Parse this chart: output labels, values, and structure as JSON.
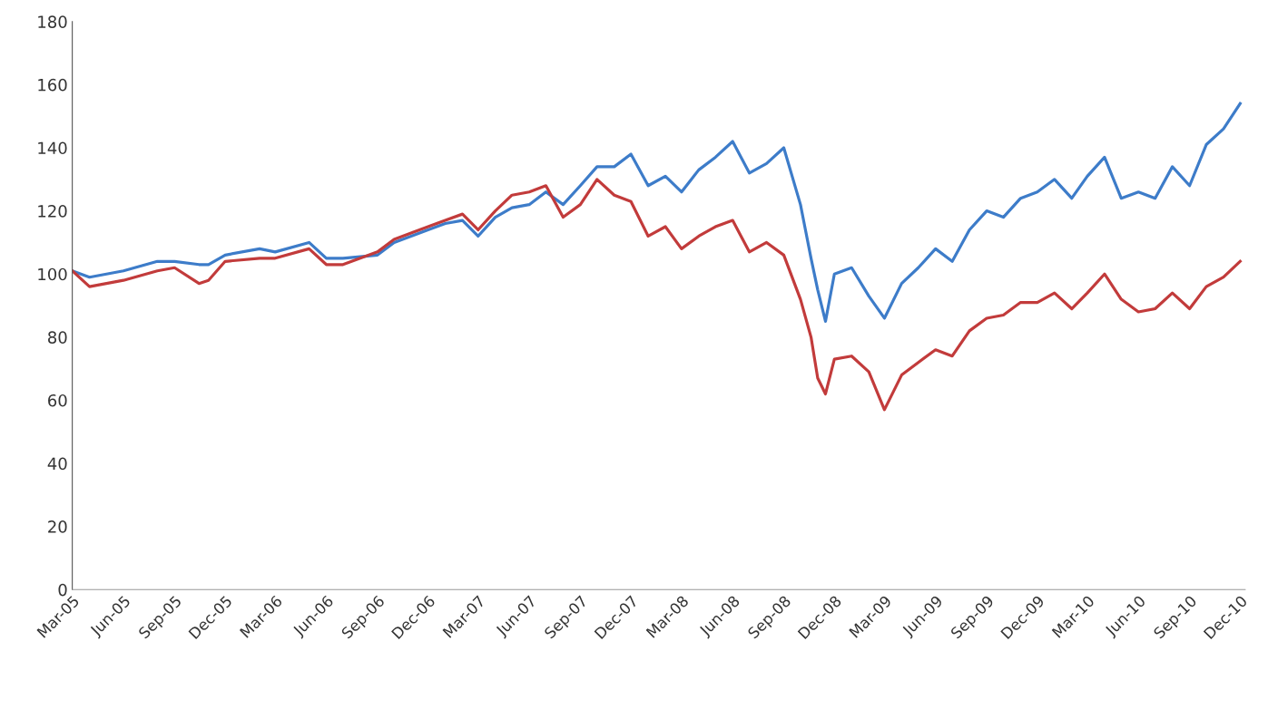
{
  "chart_data": {
    "type": "line",
    "x": [
      "2005-03-01",
      "2005-04-01",
      "2005-06-01",
      "2005-08-01",
      "2005-09-01",
      "2005-10-15",
      "2005-11-01",
      "2005-12-01",
      "2006-02-01",
      "2006-03-01",
      "2006-05-01",
      "2006-06-01",
      "2006-07-01",
      "2006-09-01",
      "2006-10-01",
      "2006-12-01",
      "2007-01-01",
      "2007-02-01",
      "2007-03-01",
      "2007-04-01",
      "2007-05-01",
      "2007-06-01",
      "2007-07-01",
      "2007-08-01",
      "2007-09-01",
      "2007-10-01",
      "2007-11-01",
      "2007-12-01",
      "2008-01-01",
      "2008-02-01",
      "2008-03-01",
      "2008-04-01",
      "2008-05-01",
      "2008-06-01",
      "2008-07-01",
      "2008-08-01",
      "2008-09-01",
      "2008-10-01",
      "2008-10-20",
      "2008-11-01",
      "2008-11-15",
      "2008-12-01",
      "2009-01-01",
      "2009-02-01",
      "2009-03-01",
      "2009-04-01",
      "2009-05-01",
      "2009-06-01",
      "2009-07-01",
      "2009-08-01",
      "2009-09-01",
      "2009-10-01",
      "2009-11-01",
      "2009-12-01",
      "2010-01-01",
      "2010-02-01",
      "2010-03-01",
      "2010-04-01",
      "2010-05-01",
      "2010-06-01",
      "2010-07-01",
      "2010-08-01",
      "2010-09-01",
      "2010-10-01",
      "2010-11-01",
      "2010-12-01"
    ],
    "series": [
      {
        "color": "#3d7cc9",
        "values": [
          101,
          99,
          101,
          104,
          104,
          103,
          103,
          106,
          108,
          107,
          110,
          105,
          105,
          106,
          110,
          114,
          116,
          117,
          112,
          118,
          121,
          122,
          126,
          122,
          128,
          134,
          134,
          138,
          128,
          131,
          126,
          133,
          137,
          142,
          132,
          135,
          140,
          122,
          105,
          95,
          85,
          100,
          102,
          93,
          86,
          97,
          102,
          108,
          104,
          114,
          120,
          118,
          124,
          126,
          130,
          124,
          131,
          137,
          124,
          126,
          124,
          134,
          128,
          141,
          146,
          154
        ]
      },
      {
        "color": "#c23b3b",
        "values": [
          101,
          96,
          98,
          101,
          102,
          97,
          98,
          104,
          105,
          105,
          108,
          103,
          103,
          107,
          111,
          115,
          117,
          119,
          114,
          120,
          125,
          126,
          128,
          118,
          122,
          130,
          125,
          123,
          112,
          115,
          108,
          112,
          115,
          117,
          107,
          110,
          106,
          92,
          80,
          67,
          62,
          73,
          74,
          69,
          57,
          68,
          72,
          76,
          74,
          82,
          86,
          87,
          91,
          91,
          94,
          89,
          94,
          100,
          92,
          88,
          89,
          94,
          89,
          96,
          99,
          104
        ]
      }
    ],
    "xlim": [
      "2005-03-01",
      "2010-12-10"
    ],
    "xticks": [
      {
        "value": "2005-03-01",
        "label": "Mar-05"
      },
      {
        "value": "2005-06-01",
        "label": "Jun-05"
      },
      {
        "value": "2005-09-01",
        "label": "Sep-05"
      },
      {
        "value": "2005-12-01",
        "label": "Dec-05"
      },
      {
        "value": "2006-03-01",
        "label": "Mar-06"
      },
      {
        "value": "2006-06-01",
        "label": "Jun-06"
      },
      {
        "value": "2006-09-01",
        "label": "Sep-06"
      },
      {
        "value": "2006-12-01",
        "label": "Dec-06"
      },
      {
        "value": "2007-03-01",
        "label": "Mar-07"
      },
      {
        "value": "2007-06-01",
        "label": "Jun-07"
      },
      {
        "value": "2007-09-01",
        "label": "Sep-07"
      },
      {
        "value": "2007-12-01",
        "label": "Dec-07"
      },
      {
        "value": "2008-03-01",
        "label": "Mar-08"
      },
      {
        "value": "2008-06-01",
        "label": "Jun-08"
      },
      {
        "value": "2008-09-01",
        "label": "Sep-08"
      },
      {
        "value": "2008-12-01",
        "label": "Dec-08"
      },
      {
        "value": "2009-03-01",
        "label": "Mar-09"
      },
      {
        "value": "2009-06-01",
        "label": "Jun-09"
      },
      {
        "value": "2009-09-01",
        "label": "Sep-09"
      },
      {
        "value": "2009-12-01",
        "label": "Dec-09"
      },
      {
        "value": "2010-03-01",
        "label": "Mar-10"
      },
      {
        "value": "2010-06-01",
        "label": "Jun-10"
      },
      {
        "value": "2010-09-01",
        "label": "Sep-10"
      },
      {
        "value": "2010-12-01",
        "label": "Dec-10"
      }
    ],
    "ylim": [
      0,
      180
    ],
    "yticks": [
      0,
      20,
      40,
      60,
      80,
      100,
      120,
      140,
      160,
      180
    ],
    "grid": false,
    "marker": "none",
    "line_style": "solid"
  }
}
